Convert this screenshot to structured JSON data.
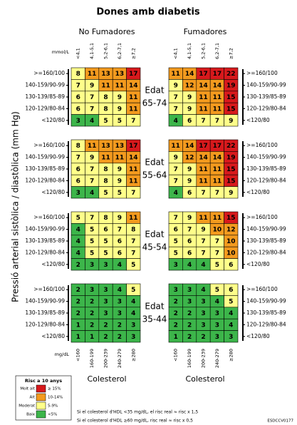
{
  "title": "Dones amb diabetis",
  "groups": [
    "No Fumadores",
    "Fumadores"
  ],
  "mmol_unit": "mmol/L",
  "mmol_labels": [
    "<4,1",
    "4,1-5,1",
    "5,2-6,1",
    "6,2-7,1",
    "≥7,2"
  ],
  "mgdl_unit": "mg/dL",
  "mgdl_labels": [
    "<160",
    "160-199",
    "200-239",
    "240-279",
    "≥280"
  ],
  "pressure_labels": [
    ">=160/100",
    "140-159/90-99",
    "130-139/85-89",
    "120-129/80-84",
    "<120/80"
  ],
  "y_axis_label": "Pressió arterial sistòlica / diastòlica (mm Hg)",
  "x_axis_label": "Colesterol",
  "age_title": "Edat",
  "panels": [
    {
      "age": "65-74",
      "non_smokers": [
        [
          8,
          11,
          13,
          13,
          17
        ],
        [
          7,
          9,
          11,
          11,
          14
        ],
        [
          6,
          7,
          8,
          9,
          11
        ],
        [
          6,
          7,
          8,
          9,
          11
        ],
        [
          3,
          4,
          5,
          5,
          7
        ]
      ],
      "smokers": [
        [
          11,
          14,
          17,
          17,
          22
        ],
        [
          9,
          12,
          14,
          14,
          19
        ],
        [
          7,
          9,
          11,
          11,
          15
        ],
        [
          7,
          9,
          11,
          11,
          15
        ],
        [
          4,
          6,
          7,
          7,
          9
        ]
      ]
    },
    {
      "age": "55-64",
      "non_smokers": [
        [
          8,
          11,
          13,
          13,
          17
        ],
        [
          7,
          9,
          11,
          11,
          14
        ],
        [
          6,
          7,
          8,
          9,
          11
        ],
        [
          6,
          7,
          8,
          9,
          11
        ],
        [
          3,
          4,
          5,
          5,
          7
        ]
      ],
      "smokers": [
        [
          11,
          14,
          17,
          17,
          22
        ],
        [
          9,
          12,
          14,
          14,
          19
        ],
        [
          7,
          9,
          11,
          11,
          15
        ],
        [
          7,
          9,
          11,
          11,
          15
        ],
        [
          4,
          6,
          7,
          7,
          9
        ]
      ]
    },
    {
      "age": "45-54",
      "non_smokers": [
        [
          5,
          7,
          8,
          9,
          11
        ],
        [
          4,
          5,
          6,
          7,
          8
        ],
        [
          4,
          5,
          5,
          6,
          7
        ],
        [
          4,
          5,
          5,
          6,
          7
        ],
        [
          2,
          3,
          3,
          4,
          5
        ]
      ],
      "smokers": [
        [
          7,
          9,
          11,
          11,
          15
        ],
        [
          6,
          7,
          9,
          10,
          12
        ],
        [
          5,
          6,
          7,
          7,
          10
        ],
        [
          5,
          6,
          7,
          7,
          10
        ],
        [
          3,
          4,
          4,
          5,
          6
        ]
      ]
    },
    {
      "age": "35-44",
      "non_smokers": [
        [
          2,
          3,
          3,
          4,
          5
        ],
        [
          2,
          2,
          3,
          3,
          4
        ],
        [
          2,
          2,
          3,
          3,
          4
        ],
        [
          1,
          2,
          2,
          2,
          3
        ],
        [
          1,
          1,
          2,
          2,
          3
        ]
      ],
      "smokers": [
        [
          3,
          3,
          4,
          5,
          6
        ],
        [
          2,
          3,
          3,
          4,
          5
        ],
        [
          2,
          2,
          3,
          3,
          4
        ],
        [
          2,
          2,
          3,
          3,
          4
        ],
        [
          1,
          2,
          2,
          3,
          3
        ]
      ]
    }
  ],
  "legend": {
    "title": "Risc a 10 anys",
    "items": [
      {
        "label": "Molt alt",
        "range": "≥ 15%",
        "color": "#d7191c",
        "from": 15
      },
      {
        "label": "Alt",
        "range": "10-14%",
        "color": "#f39a1e",
        "from": 10
      },
      {
        "label": "Moderat",
        "range": "5-9%",
        "color": "#ffff8a",
        "from": 5
      },
      {
        "label": "Baix",
        "range": "<5%",
        "color": "#3cb54a"
      }
    ]
  },
  "notes": [
    "Si el colesterol d'HDL <35 mg/dL, el risc real ≈ risc x 1,5",
    "Si el colesterol d'HDL ≥60 mg/dL, risc real ≈ risc x 0,5"
  ],
  "code": "ESDCCV0177"
}
